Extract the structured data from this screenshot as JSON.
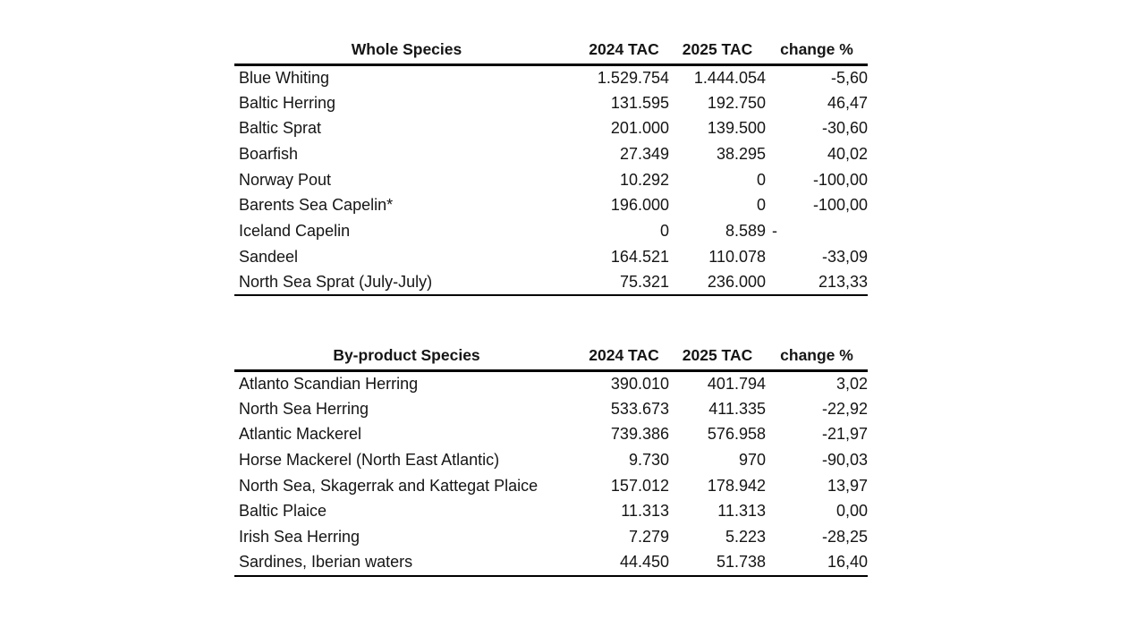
{
  "colors": {
    "background": "#ffffff",
    "text": "#151515",
    "border": "#000000"
  },
  "tables": [
    {
      "name": "whole-species",
      "headers": [
        "Whole Species",
        "2024 TAC",
        "2025 TAC",
        "change %"
      ],
      "rows": [
        {
          "species": "Blue Whiting",
          "tac2024": "1.529.754",
          "tac2025": "1.444.054",
          "change": "-5,60"
        },
        {
          "species": "Baltic Herring",
          "tac2024": "131.595",
          "tac2025": "192.750",
          "change": "46,47"
        },
        {
          "species": "Baltic Sprat",
          "tac2024": "201.000",
          "tac2025": "139.500",
          "change": "-30,60"
        },
        {
          "species": "Boarfish",
          "tac2024": "27.349",
          "tac2025": "38.295",
          "change": "40,02"
        },
        {
          "species": "Norway Pout",
          "tac2024": "10.292",
          "tac2025": "0",
          "change": "-100,00"
        },
        {
          "species": "Barents Sea Capelin*",
          "tac2024": "196.000",
          "tac2025": "0",
          "change": "-100,00"
        },
        {
          "species": "Iceland Capelin",
          "tac2024": "0",
          "tac2025": "8.589",
          "change": "-"
        },
        {
          "species": "Sandeel",
          "tac2024": "164.521",
          "tac2025": "110.078",
          "change": "-33,09"
        },
        {
          "species": "North Sea Sprat (July-July)",
          "tac2024": "75.321",
          "tac2025": "236.000",
          "change": "213,33"
        }
      ]
    },
    {
      "name": "byproduct-species",
      "headers": [
        "By-product Species",
        "2024 TAC",
        "2025 TAC",
        "change %"
      ],
      "rows": [
        {
          "species": "Atlanto Scandian Herring",
          "tac2024": "390.010",
          "tac2025": "401.794",
          "change": "3,02"
        },
        {
          "species": "North Sea Herring",
          "tac2024": "533.673",
          "tac2025": "411.335",
          "change": "-22,92"
        },
        {
          "species": "Atlantic Mackerel",
          "tac2024": "739.386",
          "tac2025": "576.958",
          "change": "-21,97"
        },
        {
          "species": "Horse Mackerel  (North East Atlantic)",
          "tac2024": "9.730",
          "tac2025": "970",
          "change": "-90,03"
        },
        {
          "species": "North Sea, Skagerrak and Kattegat Plaice",
          "tac2024": "157.012",
          "tac2025": "178.942",
          "change": "13,97"
        },
        {
          "species": "Baltic Plaice",
          "tac2024": "11.313",
          "tac2025": "11.313",
          "change": "0,00"
        },
        {
          "species": "Irish Sea Herring",
          "tac2024": "7.279",
          "tac2025": "5.223",
          "change": "-28,25"
        },
        {
          "species": "Sardines, Iberian waters",
          "tac2024": "44.450",
          "tac2025": "51.738",
          "change": "16,40"
        }
      ]
    }
  ]
}
